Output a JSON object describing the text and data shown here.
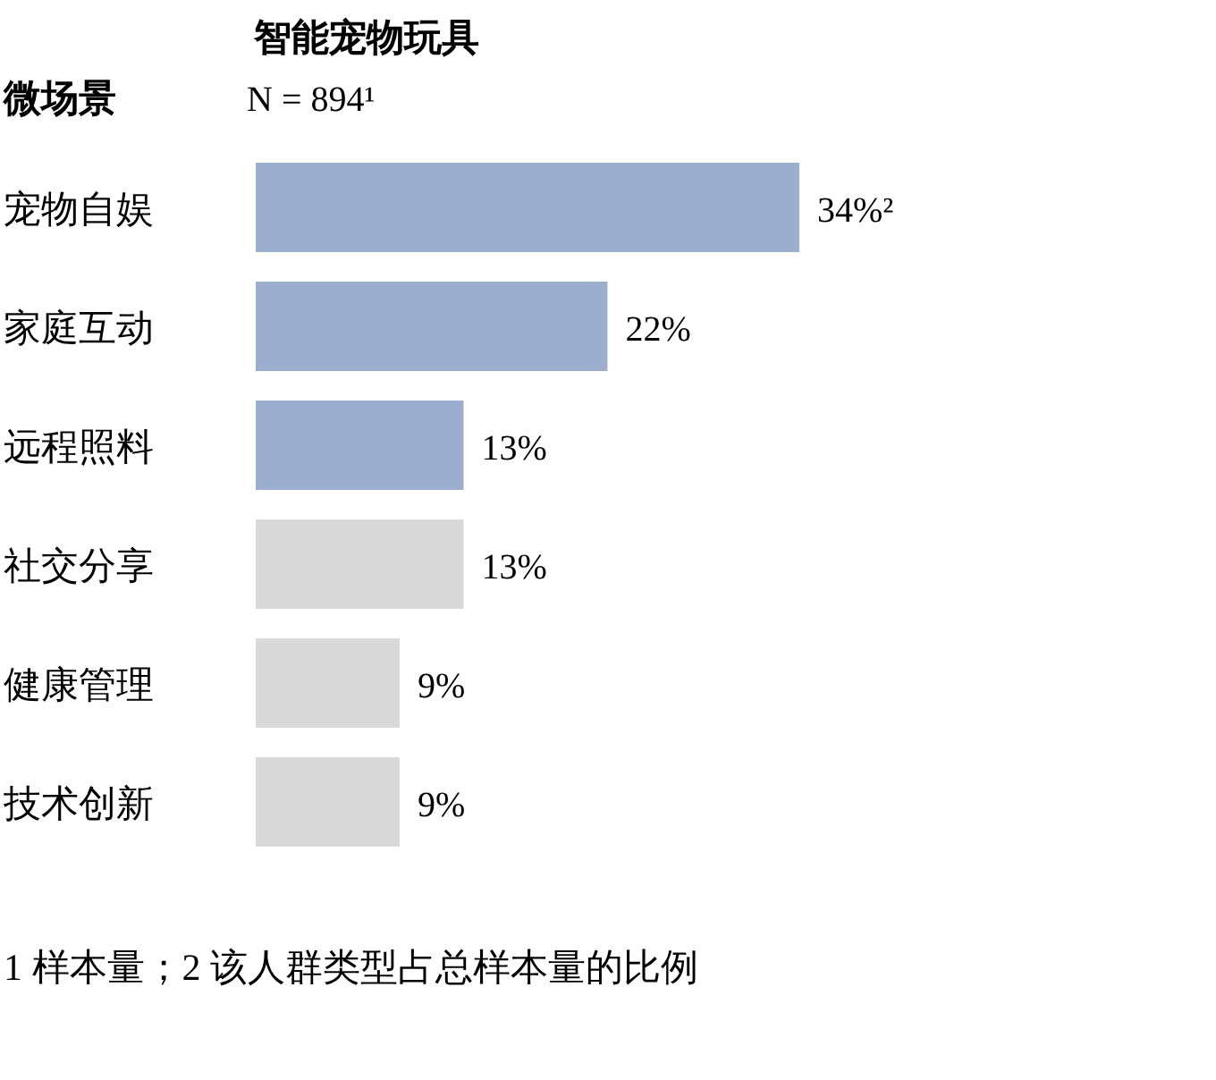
{
  "chart_data": {
    "type": "bar",
    "orientation": "horizontal",
    "title": "智能宠物玩具",
    "subtitle": "N = 894¹",
    "ylabel": "微场景",
    "categories": [
      "宠物自娱",
      "家庭互动",
      "远程照料",
      "社交分享",
      "健康管理",
      "技术创新"
    ],
    "values": [
      34,
      22,
      13,
      13,
      9,
      9
    ],
    "colors": [
      "#9caecd",
      "#9caecd",
      "#9caecd",
      "#d9d9d9",
      "#d9d9d9",
      "#d9d9d9"
    ],
    "value_labels": [
      "34%²",
      "22%",
      "13%",
      "13%",
      "9%",
      "9%"
    ],
    "annotations": [
      "1 样本量；2 该人群类型占总样本量的比例"
    ]
  }
}
